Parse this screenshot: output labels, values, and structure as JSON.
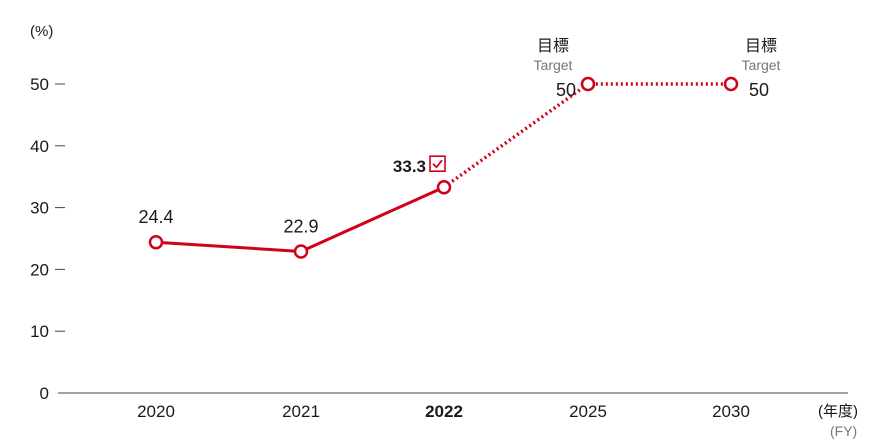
{
  "chart_data": {
    "type": "line",
    "ylabel": "(%)",
    "xlabel": "(年度)",
    "xlabel_sub": "(FY)",
    "ylim": [
      0,
      50
    ],
    "yticks": [
      "0",
      "10",
      "20",
      "30",
      "40",
      "50"
    ],
    "categories": [
      "2020",
      "2021",
      "2022",
      "2025",
      "2030"
    ],
    "bold_category": "2022",
    "series": [
      {
        "values": [
          24.4,
          22.9,
          33.3,
          50,
          50
        ],
        "labels": [
          "24.4",
          "22.9",
          "33.3",
          "50",
          "50"
        ],
        "actual_count": 3
      }
    ],
    "target_label_jp": "目標",
    "target_label_en": "Target",
    "grid": false,
    "colors": {
      "line": "#d0021b",
      "marker_fill": "#ffffff",
      "axis": "#444444",
      "text": "#1a1a1a",
      "subtext": "#777777"
    },
    "icons": {
      "achieved": "checkbox-check-icon"
    }
  }
}
